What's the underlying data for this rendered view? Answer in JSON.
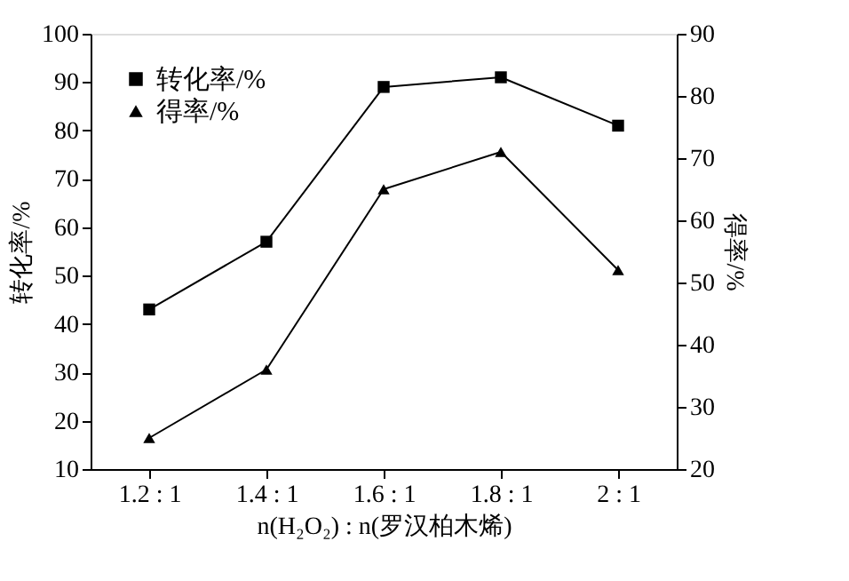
{
  "chart_data": {
    "type": "line",
    "categories": [
      "1.2 : 1",
      "1.4 : 1",
      "1.6 : 1",
      "1.8 : 1",
      "2 : 1"
    ],
    "xlabel": "n(H₂O₂) : n(罗汉柏木烯)",
    "ylabel": "转化率/%",
    "y2label": "得率/%",
    "series": [
      {
        "name": "转化率/%",
        "color": "#000000",
        "marker": "square",
        "values": [
          43,
          57,
          89,
          91,
          81
        ]
      },
      {
        "name": "得率/%",
        "color": "#000000",
        "marker": "triangle",
        "axis": "y2",
        "values": [
          25,
          36,
          65,
          71,
          52
        ]
      }
    ],
    "ylim": [
      10,
      100
    ],
    "yticks": [
      10,
      20,
      30,
      40,
      50,
      60,
      70,
      80,
      90,
      100
    ],
    "y2lim": [
      20,
      90
    ],
    "y2ticks": [
      20,
      30,
      40,
      50,
      60,
      70,
      80,
      90
    ],
    "legend": "top left",
    "grid": false,
    "line_style": "solid"
  }
}
